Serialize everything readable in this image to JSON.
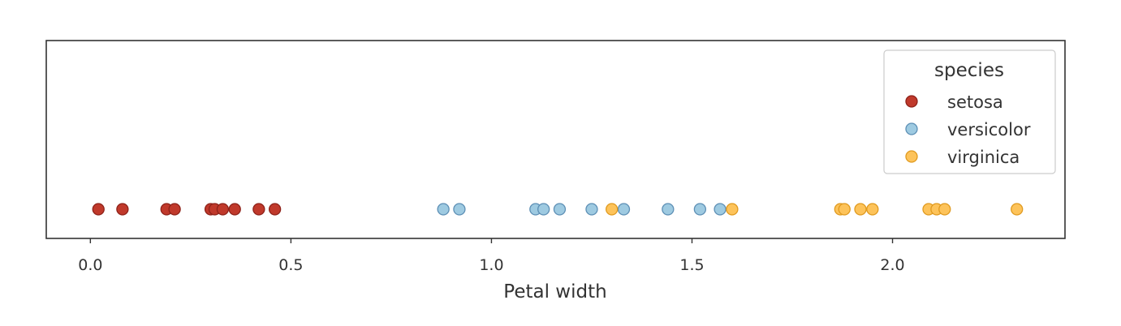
{
  "chart_data": {
    "type": "scatter",
    "xlabel": "Petal width",
    "xticks": [
      "0.0",
      "0.5",
      "1.0",
      "1.5",
      "2.0"
    ],
    "xlim": [
      -0.11,
      2.43
    ],
    "legend": {
      "title": "species",
      "position": "top-right"
    },
    "series": [
      {
        "name": "setosa",
        "color": "#c0392b",
        "edge": "#8e2219",
        "values": [
          0.02,
          0.08,
          0.19,
          0.21,
          0.3,
          0.31,
          0.33,
          0.36,
          0.42,
          0.46
        ]
      },
      {
        "name": "versicolor",
        "color": "#9ecae1",
        "edge": "#5d8fb5",
        "values": [
          0.88,
          0.92,
          1.11,
          1.13,
          1.17,
          1.25,
          1.33,
          1.44,
          1.52,
          1.57
        ]
      },
      {
        "name": "virginica",
        "color": "#fdc35a",
        "edge": "#e09a1f",
        "values": [
          1.3,
          1.6,
          1.87,
          1.88,
          1.92,
          1.95,
          2.09,
          2.11,
          2.13,
          2.31
        ]
      }
    ]
  }
}
